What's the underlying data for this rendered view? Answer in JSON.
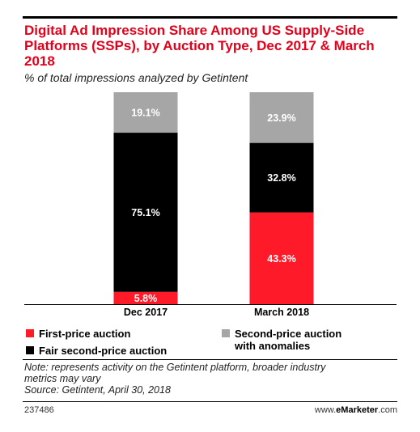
{
  "title": "Digital Ad Impression Share Among US Supply-Side Platforms (SSPs), by Auction Type, Dec 2017 & March 2018",
  "subtitle": "% of total impressions analyzed by Getintent",
  "chart_data": {
    "type": "bar",
    "stacked": true,
    "categories": [
      "Dec 2017",
      "March 2018"
    ],
    "series": [
      {
        "name": "First-price auction",
        "color": "#ff1a2a",
        "values": [
          5.8,
          43.3
        ],
        "labels": [
          "5.8%",
          "43.3%"
        ]
      },
      {
        "name": "Fair second-price auction",
        "color": "#000000",
        "values": [
          75.1,
          32.8
        ],
        "labels": [
          "75.1%",
          "32.8%"
        ]
      },
      {
        "name": "Second-price auction with anomalies",
        "color": "#a6a6a6",
        "values": [
          19.1,
          23.9
        ],
        "labels": [
          "19.1%",
          "23.9%"
        ]
      }
    ],
    "ylim": [
      0,
      100
    ]
  },
  "legend": {
    "first_price": "First-price auction",
    "fair_second_price": "Fair second-price auction",
    "anomalies_line1": "Second-price auction",
    "anomalies_line2": "with anomalies"
  },
  "note": {
    "line1": "Note: represents activity on the Getintent platform, broader industry",
    "line2": "metrics may vary",
    "source": "Source: Getintent, April 30, 2018"
  },
  "footer": {
    "id": "237486",
    "brand_prefix": "www.",
    "brand_bold": "eMarketer",
    "brand_suffix": ".com"
  }
}
